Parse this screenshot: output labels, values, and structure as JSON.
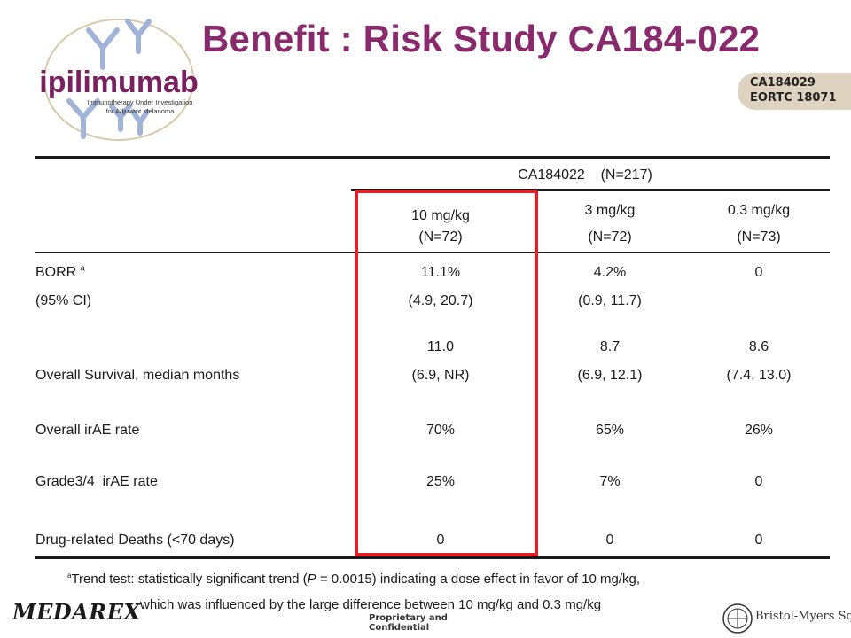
{
  "header": {
    "title": "Benefit : Risk Study CA184-022",
    "logo_word": "ipilimumab",
    "logo_tagline_1": "Immunotherapy Under Investigation",
    "logo_tagline_2": "for Adjuvant Melanoma",
    "study_tag_1": "CA184029",
    "study_tag_2": "EORTC 18071"
  },
  "colors": {
    "title": "#8a2a6e",
    "highlight_box": "#e31e24",
    "study_tag_bg": "#ddd3c0",
    "logo_blue": "#9fb4d8"
  },
  "table": {
    "group_header": "CA184022    (N=217)",
    "columns": [
      {
        "dose": "10 mg/kg",
        "n": "(N=72)"
      },
      {
        "dose": "3 mg/kg",
        "n": "(N=72)"
      },
      {
        "dose": "0.3 mg/kg",
        "n": "(N=73)"
      }
    ],
    "rows": [
      {
        "label": "BORR",
        "label_sup": "a",
        "label2": "(95% CI)",
        "values": [
          "11.1%",
          "4.2%",
          "0"
        ],
        "values2": [
          "(4.9, 20.7)",
          "(0.9, 11.7)",
          ""
        ]
      },
      {
        "label": "Overall Survival, median months",
        "values": [
          "11.0",
          "8.7",
          "8.6"
        ],
        "values2": [
          "(6.9, NR)",
          "(6.9, 12.1)",
          "(7.4, 13.0)"
        ]
      },
      {
        "label": "Overall irAE rate",
        "values": [
          "70%",
          "65%",
          "26%"
        ]
      },
      {
        "label": "Grade3/4  irAE rate",
        "values": [
          "25%",
          "7%",
          "0"
        ]
      },
      {
        "label": "Drug-related Deaths (<70 days)",
        "values": [
          "0",
          "0",
          "0"
        ]
      }
    ]
  },
  "footnote": {
    "sup": "a",
    "line1_a": "Trend test: statistically significant trend (",
    "line1_p": "P",
    "line1_b": " = 0.0015) indicating a dose effect in favor of 10 mg/kg,",
    "line2": "which was influenced by the large difference between 10 mg/kg and 0.3 mg/kg"
  },
  "footer": {
    "medarex": "MEDAREX",
    "proprietary_1": "Proprietary and",
    "proprietary_2": "Confidential",
    "bms": "Bristol-Myers Squibb"
  }
}
